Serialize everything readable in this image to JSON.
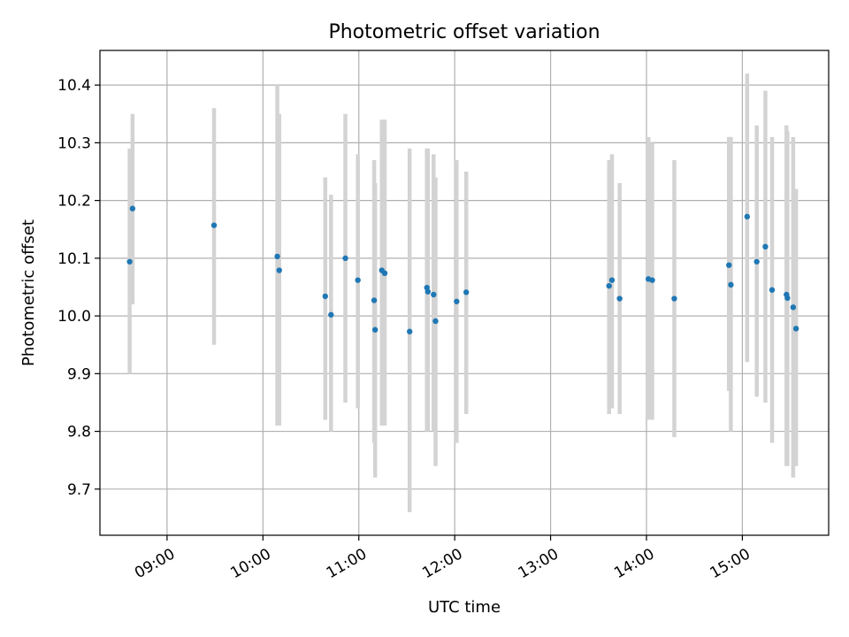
{
  "chart_data": {
    "type": "scatter",
    "title": "Photometric offset variation",
    "xlabel": "UTC time",
    "ylabel": "Photometric offset",
    "x_unit": "hours UTC",
    "xlim": [
      8.3,
      15.9
    ],
    "ylim": [
      9.62,
      10.46
    ],
    "x_ticks": [
      {
        "value": 9,
        "label": "09:00"
      },
      {
        "value": 10,
        "label": "10:00"
      },
      {
        "value": 11,
        "label": "11:00"
      },
      {
        "value": 12,
        "label": "12:00"
      },
      {
        "value": 13,
        "label": "13:00"
      },
      {
        "value": 14,
        "label": "14:00"
      },
      {
        "value": 15,
        "label": "15:00"
      }
    ],
    "y_ticks": [
      {
        "value": 9.7,
        "label": "9.7"
      },
      {
        "value": 9.8,
        "label": "9.8"
      },
      {
        "value": 9.9,
        "label": "9.9"
      },
      {
        "value": 10.0,
        "label": "10.0"
      },
      {
        "value": 10.1,
        "label": "10.1"
      },
      {
        "value": 10.2,
        "label": "10.2"
      },
      {
        "value": 10.3,
        "label": "10.3"
      },
      {
        "value": 10.4,
        "label": "10.4"
      }
    ],
    "grid": true,
    "point_color": "#1f77b4",
    "errorbar_color": "#d3d3d3",
    "points": [
      {
        "x": 8.61,
        "y": 10.094,
        "lo": 9.9,
        "hi": 10.29
      },
      {
        "x": 8.64,
        "y": 10.186,
        "lo": 10.02,
        "hi": 10.35
      },
      {
        "x": 9.49,
        "y": 10.157,
        "lo": 9.95,
        "hi": 10.36
      },
      {
        "x": 10.15,
        "y": 10.103,
        "lo": 9.81,
        "hi": 10.4
      },
      {
        "x": 10.17,
        "y": 10.079,
        "lo": 9.81,
        "hi": 10.35
      },
      {
        "x": 10.65,
        "y": 10.034,
        "lo": 9.82,
        "hi": 10.24
      },
      {
        "x": 10.71,
        "y": 10.002,
        "lo": 9.8,
        "hi": 10.21
      },
      {
        "x": 10.86,
        "y": 10.1,
        "lo": 9.85,
        "hi": 10.35
      },
      {
        "x": 10.99,
        "y": 10.062,
        "lo": 9.84,
        "hi": 10.28
      },
      {
        "x": 11.16,
        "y": 10.027,
        "lo": 9.78,
        "hi": 10.27
      },
      {
        "x": 11.17,
        "y": 9.976,
        "lo": 9.72,
        "hi": 10.23
      },
      {
        "x": 11.24,
        "y": 10.079,
        "lo": 9.81,
        "hi": 10.34
      },
      {
        "x": 11.27,
        "y": 10.074,
        "lo": 9.81,
        "hi": 10.34
      },
      {
        "x": 11.53,
        "y": 9.973,
        "lo": 9.66,
        "hi": 10.29
      },
      {
        "x": 11.71,
        "y": 10.049,
        "lo": 9.8,
        "hi": 10.29
      },
      {
        "x": 11.72,
        "y": 10.042,
        "lo": 9.8,
        "hi": 10.29
      },
      {
        "x": 11.78,
        "y": 10.037,
        "lo": 9.8,
        "hi": 10.28
      },
      {
        "x": 11.8,
        "y": 9.991,
        "lo": 9.74,
        "hi": 10.24
      },
      {
        "x": 12.02,
        "y": 10.025,
        "lo": 9.78,
        "hi": 10.27
      },
      {
        "x": 12.12,
        "y": 10.041,
        "lo": 9.83,
        "hi": 10.25
      },
      {
        "x": 13.61,
        "y": 10.052,
        "lo": 9.83,
        "hi": 10.27
      },
      {
        "x": 13.64,
        "y": 10.062,
        "lo": 9.84,
        "hi": 10.28
      },
      {
        "x": 13.72,
        "y": 10.03,
        "lo": 9.83,
        "hi": 10.23
      },
      {
        "x": 14.02,
        "y": 10.064,
        "lo": 9.82,
        "hi": 10.31
      },
      {
        "x": 14.06,
        "y": 10.062,
        "lo": 9.82,
        "hi": 10.3
      },
      {
        "x": 14.29,
        "y": 10.03,
        "lo": 9.79,
        "hi": 10.27
      },
      {
        "x": 14.86,
        "y": 10.088,
        "lo": 9.87,
        "hi": 10.31
      },
      {
        "x": 14.88,
        "y": 10.054,
        "lo": 9.8,
        "hi": 10.31
      },
      {
        "x": 15.05,
        "y": 10.172,
        "lo": 9.92,
        "hi": 10.42
      },
      {
        "x": 15.15,
        "y": 10.094,
        "lo": 9.86,
        "hi": 10.33
      },
      {
        "x": 15.24,
        "y": 10.12,
        "lo": 9.85,
        "hi": 10.39
      },
      {
        "x": 15.31,
        "y": 10.045,
        "lo": 9.78,
        "hi": 10.31
      },
      {
        "x": 15.46,
        "y": 10.037,
        "lo": 9.74,
        "hi": 10.33
      },
      {
        "x": 15.47,
        "y": 10.031,
        "lo": 9.74,
        "hi": 10.32
      },
      {
        "x": 15.53,
        "y": 10.015,
        "lo": 9.72,
        "hi": 10.31
      },
      {
        "x": 15.56,
        "y": 9.978,
        "lo": 9.74,
        "hi": 10.22
      }
    ]
  }
}
